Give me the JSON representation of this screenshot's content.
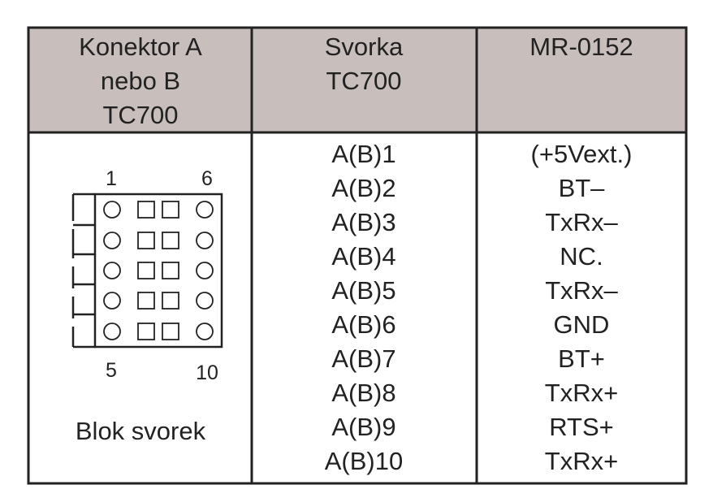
{
  "header": {
    "columns": [
      [
        "Konektor A",
        "nebo B",
        "TC700"
      ],
      [
        "Svorka",
        "TC700"
      ],
      [
        "MR-0152"
      ]
    ]
  },
  "connector": {
    "pin_labels": {
      "top_left": "1",
      "top_right": "6",
      "bottom_left": "5",
      "bottom_right": "10"
    },
    "caption": "Blok svorek"
  },
  "table": {
    "rows": [
      [
        "A(B)1",
        "(+5Vext.)"
      ],
      [
        "A(B)2",
        "BT–"
      ],
      [
        "A(B)3",
        "TxRx–"
      ],
      [
        "A(B)4",
        "NC."
      ],
      [
        "A(B)5",
        "TxRx–"
      ],
      [
        "A(B)6",
        "GND"
      ],
      [
        "A(B)7",
        "BT+"
      ],
      [
        "A(B)8",
        "TxRx+"
      ],
      [
        "A(B)9",
        "RTS+"
      ],
      [
        "A(B)10",
        "TxRx+"
      ]
    ]
  }
}
